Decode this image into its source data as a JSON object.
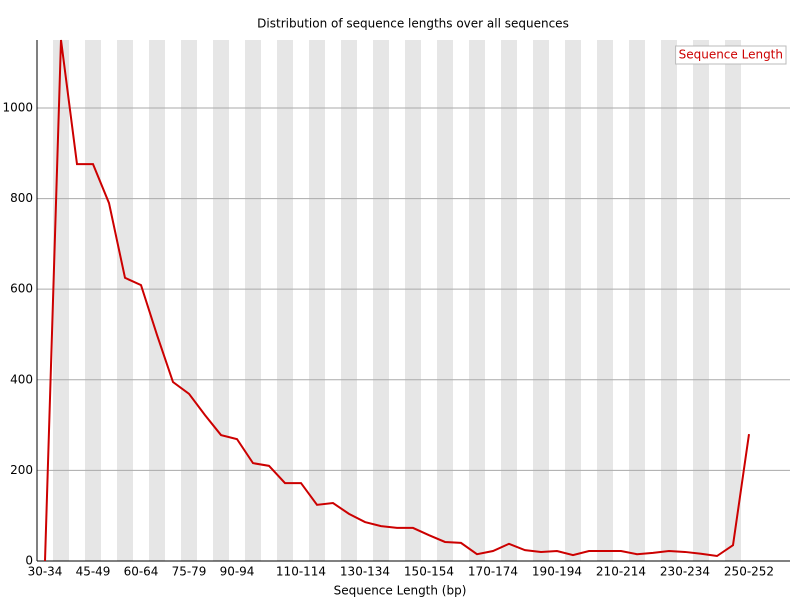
{
  "chart_data": {
    "type": "line",
    "title": "Distribution of sequence lengths over all sequences",
    "x_label": "Sequence Length (bp)",
    "categories": [
      "30-34",
      null,
      null,
      "45-49",
      null,
      null,
      "60-64",
      null,
      null,
      "75-79",
      null,
      null,
      "90-94",
      null,
      null,
      null,
      "110-114",
      null,
      null,
      null,
      "130-134",
      null,
      null,
      null,
      "150-154",
      null,
      null,
      null,
      "170-174",
      null,
      null,
      null,
      "190-194",
      null,
      null,
      null,
      "210-214",
      null,
      null,
      null,
      "230-234",
      null,
      null,
      null,
      "250-252"
    ],
    "series": [
      {
        "name": "Sequence Length",
        "color": "#cc0000",
        "values": [
          0,
          1150,
          876,
          876,
          790,
          625,
          609,
          499,
          395,
          369,
          322,
          278,
          269,
          216,
          210,
          172,
          172,
          124,
          128,
          104,
          86,
          77,
          73,
          73,
          57,
          42,
          40,
          15,
          22,
          38,
          24,
          20,
          22,
          13,
          22,
          22,
          22,
          15,
          18,
          22,
          20,
          16,
          11,
          35,
          280
        ]
      }
    ],
    "ylim": [
      0,
      1150
    ],
    "yticks": [
      0,
      200,
      400,
      600,
      800,
      1000
    ],
    "grid": true,
    "legend": "upper right"
  }
}
